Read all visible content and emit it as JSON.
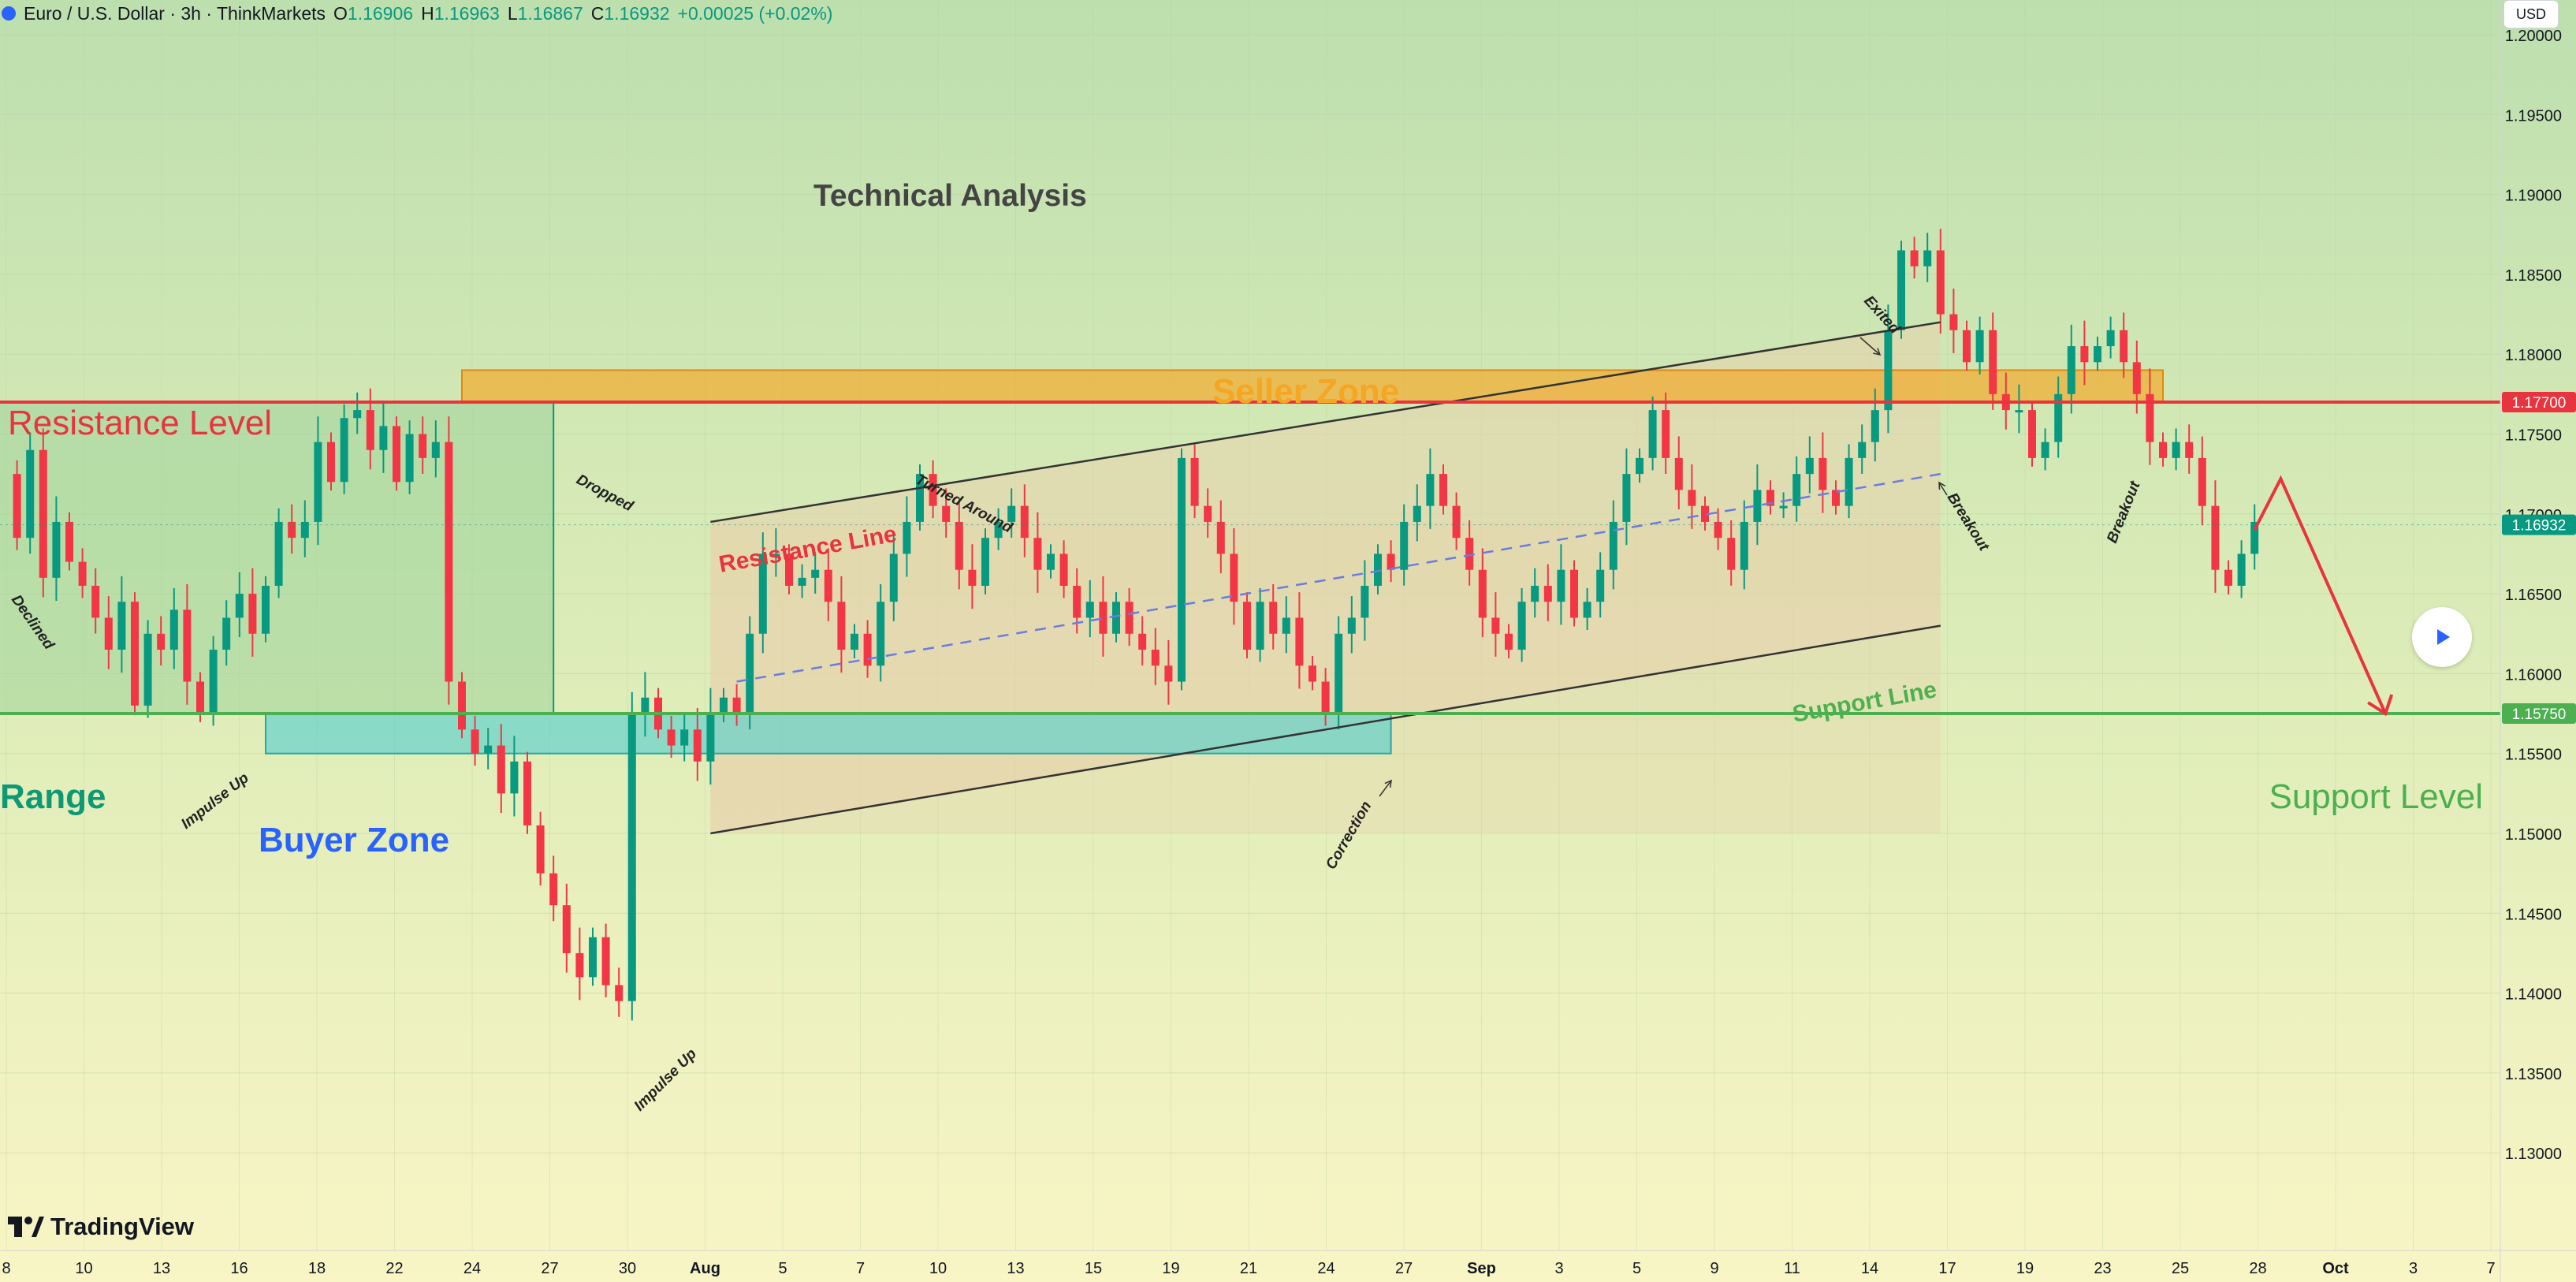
{
  "header": {
    "symbol": "Euro / U.S. Dollar · 3h · ThinkMarkets",
    "o_label": "O",
    "o_value": "1.16906",
    "h_label": "H",
    "h_value": "1.16963",
    "l_label": "L",
    "l_value": "1.16867",
    "c_label": "C",
    "c_value": "1.16932",
    "change": "+0.00025 (+0.02%)"
  },
  "currency_button": "USD",
  "branding": "TradingView",
  "colors": {
    "bg_top": "#bfe0b0",
    "bg_bottom": "#f8f4c4",
    "up": "#089981",
    "down": "#f23645",
    "resistance": "#e8343f",
    "support": "#4caf50",
    "seller_zone": "#f5a623",
    "buyer_zone": "#5ad0cc",
    "range_box": "#9fd39a",
    "channel": "#e8d2ad",
    "range_text": "#0d9976",
    "buyer_text": "#2962ff"
  },
  "chart_data": {
    "type": "candlestick",
    "symbol": "EURUSD",
    "timeframe": "3h",
    "ylim": [
      1.1275,
      1.2035
    ],
    "y_ticks": [
      "1.20000",
      "1.19500",
      "1.19000",
      "1.18500",
      "1.18000",
      "1.17500",
      "1.17000",
      "1.16500",
      "1.16000",
      "1.15500",
      "1.15000",
      "1.14500",
      "1.14000",
      "1.13500",
      "1.13000"
    ],
    "x_ticks": [
      "8",
      "10",
      "13",
      "16",
      "18",
      "22",
      "24",
      "27",
      "30",
      "Aug",
      "5",
      "7",
      "10",
      "13",
      "15",
      "19",
      "21",
      "24",
      "27",
      "Sep",
      "3",
      "5",
      "9",
      "11",
      "14",
      "17",
      "19",
      "23",
      "25",
      "28",
      "Oct",
      "3",
      "7"
    ],
    "last_price": "1.16932",
    "levels": [
      {
        "name": "Resistance Level",
        "price": "1.17700",
        "value": 1.177
      },
      {
        "name": "Support Level",
        "price": "1.15750",
        "value": 1.1575
      }
    ],
    "ohlc_path": [
      1.1725,
      1.1685,
      1.174,
      1.166,
      1.1695,
      1.167,
      1.1655,
      1.1635,
      1.1615,
      1.1645,
      1.158,
      1.1625,
      1.1615,
      1.164,
      1.1595,
      1.1575,
      1.1615,
      1.1635,
      1.165,
      1.1625,
      1.1655,
      1.1695,
      1.1685,
      1.1695,
      1.1745,
      1.172,
      1.176,
      1.1765,
      1.174,
      1.1755,
      1.172,
      1.175,
      1.1735,
      1.1745,
      1.1595,
      1.1565,
      1.155,
      1.1555,
      1.1525,
      1.1545,
      1.1505,
      1.1475,
      1.1455,
      1.1425,
      1.141,
      1.1435,
      1.1405,
      1.1395,
      1.1575,
      1.1585,
      1.1565,
      1.1555,
      1.1565,
      1.1545,
      1.1575,
      1.1585,
      1.1575,
      1.1625,
      1.1675,
      1.1675,
      1.1655,
      1.166,
      1.1665,
      1.1645,
      1.1615,
      1.1625,
      1.1605,
      1.1645,
      1.1675,
      1.1695,
      1.1725,
      1.1705,
      1.1695,
      1.1665,
      1.1655,
      1.1685,
      1.1695,
      1.1705,
      1.1685,
      1.1665,
      1.1675,
      1.1655,
      1.1635,
      1.1645,
      1.1625,
      1.1645,
      1.1625,
      1.1615,
      1.1605,
      1.1595,
      1.1735,
      1.1705,
      1.1695,
      1.1675,
      1.1645,
      1.1615,
      1.1645,
      1.1625,
      1.1635,
      1.1605,
      1.1595,
      1.1575,
      1.1625,
      1.1635,
      1.1655,
      1.1675,
      1.1665,
      1.1695,
      1.1705,
      1.1725,
      1.1705,
      1.1685,
      1.1665,
      1.1635,
      1.1625,
      1.1615,
      1.1645,
      1.1655,
      1.1645,
      1.1665,
      1.1635,
      1.1645,
      1.1665,
      1.1695,
      1.1725,
      1.1735,
      1.1765,
      1.1735,
      1.1715,
      1.1705,
      1.1695,
      1.1685,
      1.1665,
      1.1695,
      1.1715,
      1.1705,
      1.1705,
      1.1725,
      1.1735,
      1.1715,
      1.1705,
      1.1735,
      1.1745,
      1.1765,
      1.1815,
      1.1865,
      1.1855,
      1.1865,
      1.1825,
      1.1815,
      1.1795,
      1.1815,
      1.1775,
      1.1765,
      1.1765,
      1.1735,
      1.1745,
      1.1775,
      1.1805,
      1.1795,
      1.1805,
      1.1815,
      1.1795,
      1.1775,
      1.1745,
      1.1735,
      1.1745,
      1.1735,
      1.1705,
      1.1665,
      1.1655,
      1.1675,
      1.1695
    ],
    "range_box": {
      "from_bar": 0,
      "to_bar": 42,
      "top": 1.177,
      "bottom": 1.1575
    },
    "seller_zone": {
      "from_bar": 35,
      "to_bar": 165,
      "top": 1.179,
      "bottom": 1.177
    },
    "buyer_zone": {
      "from_bar": 20,
      "to_bar": 106,
      "top": 1.1575,
      "bottom": 1.155
    },
    "channel": {
      "from_bar": 54,
      "to_bar": 148,
      "upper": [
        1.1695,
        1.182
      ],
      "lower": [
        1.15,
        1.163
      ],
      "mid": [
        1.1595,
        1.1725
      ]
    },
    "projection": [
      [
        172,
        1.169
      ],
      [
        174,
        1.1722
      ],
      [
        182,
        1.1575
      ]
    ],
    "annotations": [
      "Resistance Level",
      "Support Level",
      "Seller Zone",
      "Buyer Zone",
      "Range",
      "Technical Analysis",
      "Resistance Line",
      "Support Line",
      "Turned Around",
      "Declined",
      "Dropped",
      "Impulse Up",
      "Impulse Up",
      "Correction",
      "Exited",
      "Breakout",
      "Breakout"
    ]
  },
  "labels": {
    "title": "Technical Analysis",
    "resistance_level": "Resistance Level",
    "support_level": "Support Level",
    "seller_zone": "Seller Zone",
    "buyer_zone": "Buyer Zone",
    "range": "Range",
    "resistance_line": "Resistance Line",
    "support_line": "Support Line",
    "turned_around": "Turned Around",
    "declined": "Declined",
    "dropped": "Dropped",
    "impulse_up_1": "Impulse Up",
    "impulse_up_2": "Impulse Up",
    "correction": "Correction",
    "exited": "Exited",
    "breakout_1": "Breakout",
    "breakout_2": "Breakout"
  }
}
